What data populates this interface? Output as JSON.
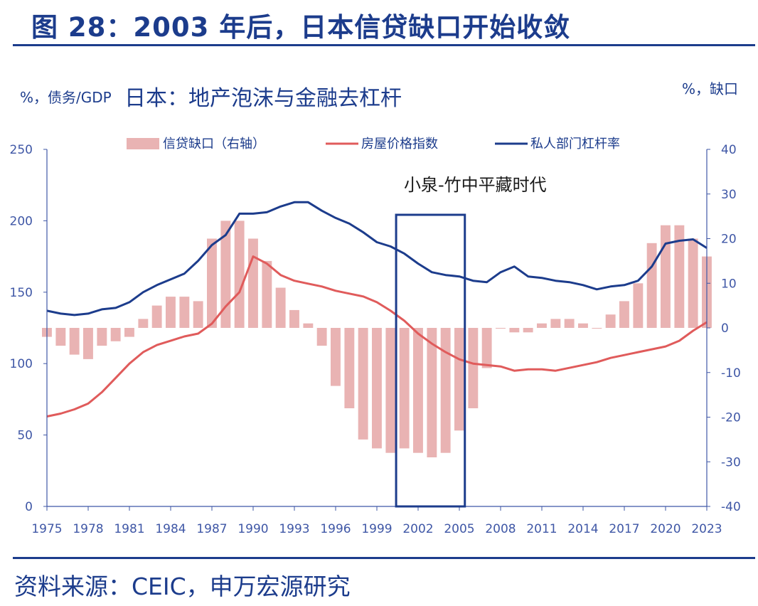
{
  "figure_title": "图 28：2003 年后，日本信贷缺口开始收敛",
  "source": "资料来源：CEIC，申万宏源研究",
  "chart_data": {
    "type": "bar+line",
    "title": "日本：地产泡沫与金融去杠杆",
    "left_axis_label": "%，债务/GDP",
    "right_axis_label": "%，缺口",
    "left_ylim": [
      0,
      250
    ],
    "left_ticks": [
      "0",
      "50",
      "100",
      "150",
      "200",
      "250"
    ],
    "right_ylim": [
      -40,
      40
    ],
    "right_ticks": [
      "-40",
      "-30",
      "-20",
      "-10",
      "0",
      "10",
      "20",
      "30",
      "40"
    ],
    "x_ticks": [
      "1975",
      "1978",
      "1981",
      "1984",
      "1987",
      "1990",
      "1993",
      "1996",
      "1999",
      "2002",
      "2005",
      "2008",
      "2011",
      "2014",
      "2017",
      "2020",
      "2023"
    ],
    "annotation": {
      "text": "小泉-竹中平藏时代",
      "x_start": 2000.4,
      "x_end": 2005.4
    },
    "colors": {
      "bars": "#e9b3b3",
      "house": "#e05b5b",
      "leverage": "#1c3c8c",
      "axis": "#3f57a6",
      "tick_text": "#3f57a6",
      "box": "#1c3c8c"
    },
    "series": [
      {
        "name": "信贷缺口（右轴）",
        "axis": "right",
        "kind": "bar",
        "years": [
          1975,
          1976,
          1977,
          1978,
          1979,
          1980,
          1981,
          1982,
          1983,
          1984,
          1985,
          1986,
          1987,
          1988,
          1989,
          1990,
          1991,
          1992,
          1993,
          1994,
          1995,
          1996,
          1997,
          1998,
          1999,
          2000,
          2001,
          2002,
          2003,
          2004,
          2005,
          2006,
          2007,
          2008,
          2009,
          2010,
          2011,
          2012,
          2013,
          2014,
          2015,
          2016,
          2017,
          2018,
          2019,
          2020,
          2021,
          2022,
          2023
        ],
        "values": [
          -2,
          -4,
          -6,
          -7,
          -4,
          -3,
          -2,
          2,
          5,
          7,
          7,
          6,
          20,
          24,
          24,
          20,
          15,
          9,
          4,
          1,
          -4,
          -13,
          -18,
          -25,
          -27,
          -28,
          -27,
          -28,
          -29,
          -28,
          -23,
          -18,
          -9,
          0,
          -1,
          -1,
          1,
          2,
          2,
          1,
          0,
          3,
          6,
          10,
          19,
          23,
          23,
          20,
          16
        ]
      },
      {
        "name": "房屋价格指数",
        "axis": "left",
        "kind": "line",
        "years": [
          1975,
          1976,
          1977,
          1978,
          1979,
          1980,
          1981,
          1982,
          1983,
          1984,
          1985,
          1986,
          1987,
          1988,
          1989,
          1990,
          1991,
          1992,
          1993,
          1994,
          1995,
          1996,
          1997,
          1998,
          1999,
          2000,
          2001,
          2002,
          2003,
          2004,
          2005,
          2006,
          2007,
          2008,
          2009,
          2010,
          2011,
          2012,
          2013,
          2014,
          2015,
          2016,
          2017,
          2018,
          2019,
          2020,
          2021,
          2022,
          2023
        ],
        "values": [
          63,
          65,
          68,
          72,
          80,
          90,
          100,
          108,
          113,
          116,
          119,
          121,
          128,
          140,
          150,
          175,
          170,
          162,
          158,
          156,
          154,
          151,
          149,
          147,
          143,
          137,
          130,
          121,
          114,
          108,
          103,
          100,
          99,
          98,
          95,
          96,
          96,
          95,
          97,
          99,
          101,
          104,
          106,
          108,
          110,
          112,
          116,
          123,
          129
        ]
      },
      {
        "name": "私人部门杠杆率",
        "axis": "left",
        "kind": "line",
        "years": [
          1975,
          1976,
          1977,
          1978,
          1979,
          1980,
          1981,
          1982,
          1983,
          1984,
          1985,
          1986,
          1987,
          1988,
          1989,
          1990,
          1991,
          1992,
          1993,
          1994,
          1995,
          1996,
          1997,
          1998,
          1999,
          2000,
          2001,
          2002,
          2003,
          2004,
          2005,
          2006,
          2007,
          2008,
          2009,
          2010,
          2011,
          2012,
          2013,
          2014,
          2015,
          2016,
          2017,
          2018,
          2019,
          2020,
          2021,
          2022,
          2023
        ],
        "values": [
          137,
          135,
          134,
          135,
          138,
          139,
          143,
          150,
          155,
          159,
          163,
          172,
          183,
          190,
          205,
          205,
          206,
          210,
          213,
          213,
          207,
          202,
          198,
          192,
          185,
          182,
          177,
          170,
          164,
          162,
          161,
          158,
          157,
          164,
          168,
          161,
          160,
          158,
          157,
          155,
          152,
          154,
          155,
          158,
          168,
          184,
          186,
          187,
          181
        ]
      }
    ]
  }
}
